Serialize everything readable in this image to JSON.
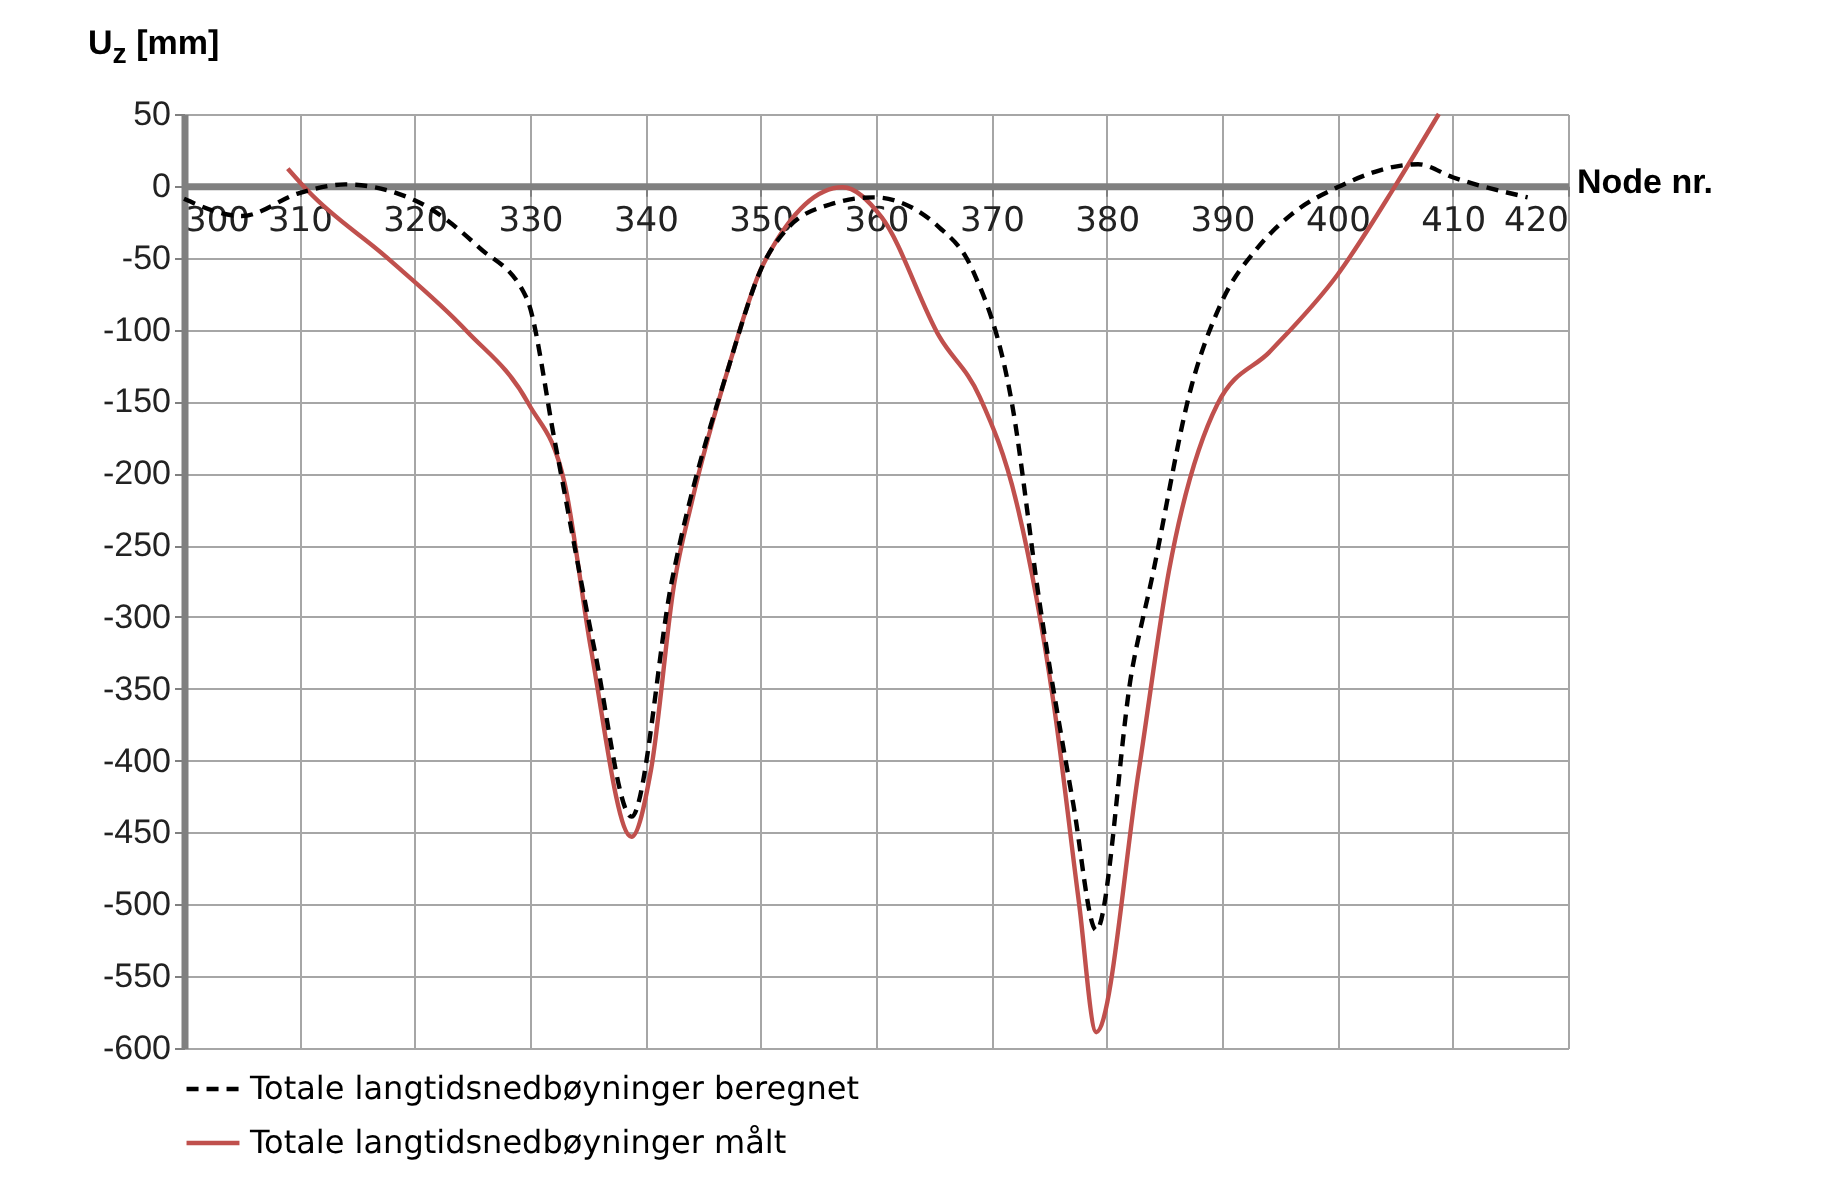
{
  "chart_data": {
    "type": "line",
    "xlabel": "Node nr.",
    "ylabel": "U$_{z}$ [mm]",
    "xlim": [
      300,
      420
    ],
    "xticks": [
      300,
      310,
      320,
      330,
      340,
      350,
      360,
      370,
      380,
      390,
      400,
      410,
      420
    ],
    "ylim": [
      -600,
      50
    ],
    "yticks": [
      50,
      0,
      -50,
      -100,
      -150,
      -200,
      -250,
      -300,
      -350,
      -400,
      -450,
      -500,
      -550,
      -600
    ],
    "grid": true,
    "legend": "bottom",
    "marker": "none",
    "series": [
      {
        "name": "Totale langtidsnedbøyninger beregnet",
        "color": "#000000",
        "line_style": "dashed",
        "x": [
          300,
          305,
          310,
          314,
          320,
          325.6,
          329.7,
          332.2,
          335.6,
          338.8,
          342.3,
          347.3,
          350.2,
          352.4,
          356,
          359.8,
          365.5,
          368.4,
          371.8,
          374.2,
          377.1,
          379.1,
          382.2,
          383.9,
          387.4,
          389.9,
          393.1,
          396,
          400,
          407,
          410,
          416.5
        ],
        "values": [
          -9,
          -21,
          -5,
          1,
          -10,
          -43,
          -78,
          -180,
          -323,
          -439,
          -275,
          -124,
          -55,
          -29,
          -13,
          -8,
          -29,
          -59,
          -152,
          -291,
          -430,
          -518,
          -337,
          -274,
          -138,
          -82,
          -43,
          -20,
          -1,
          15,
          6,
          -8
        ]
      },
      {
        "name": "Totale langtidsnedbøyninger målt",
        "color": "#c0504d",
        "line_style": "solid",
        "x": [
          309,
          310.8,
          317.6,
          324.5,
          329.9,
          333,
          335.3,
          338.8,
          340.5,
          342.5,
          344,
          347.3,
          350.2,
          357.1,
          360.5,
          365.5,
          369,
          372.2,
          375.4,
          377.6,
          379.1,
          382.8,
          385.4,
          389.6,
          394.2,
          400,
          405.1,
          408.8
        ],
        "values": [
          12,
          -4,
          -50,
          -101,
          -152,
          -207,
          -323,
          -453,
          -406,
          -277,
          -221,
          -124,
          -55,
          -1,
          -22,
          -105,
          -147,
          -221,
          -360,
          -499,
          -589,
          -406,
          -268,
          -152,
          -115,
          -62,
          1,
          50
        ]
      }
    ]
  }
}
